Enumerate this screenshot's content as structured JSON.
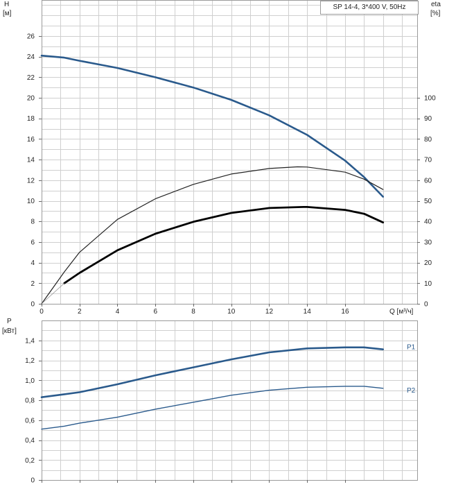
{
  "legend_box": "SP 14-4, 3*400 V, 50Hz",
  "chart_data": [
    {
      "type": "line",
      "panel": "head-efficiency",
      "xlabel": "Q [м³/ч]",
      "ylabel_left": [
        "H",
        "[м]"
      ],
      "ylabel_right": [
        "eta",
        "[%]"
      ],
      "xlim": [
        0,
        19.8
      ],
      "ylim_left": [
        0,
        29.5
      ],
      "ylim_right": [
        0,
        147.5
      ],
      "x_ticks": [
        "0",
        "2",
        "4",
        "6",
        "8",
        "10",
        "12",
        "14",
        "16"
      ],
      "x_tick_values": [
        0,
        2,
        4,
        6,
        8,
        10,
        12,
        14,
        16
      ],
      "y_left_ticks": [
        "0",
        "2",
        "4",
        "6",
        "8",
        "10",
        "12",
        "14",
        "16",
        "18",
        "20",
        "22",
        "24",
        "26"
      ],
      "y_left_tick_values": [
        0,
        2,
        4,
        6,
        8,
        10,
        12,
        14,
        16,
        18,
        20,
        22,
        24,
        26
      ],
      "y_right_ticks": [
        "0",
        "10",
        "20",
        "30",
        "40",
        "50",
        "60",
        "70",
        "80",
        "90",
        "100"
      ],
      "y_right_tick_values": [
        0,
        10,
        20,
        30,
        40,
        50,
        60,
        70,
        80,
        90,
        100
      ],
      "grid": true,
      "series": [
        {
          "axis": "left",
          "color": "#2a5a8c",
          "x": [
            0,
            1.2,
            2,
            4,
            6,
            8,
            10,
            12,
            14,
            16,
            17,
            18
          ],
          "y": [
            24.1,
            23.9,
            23.6,
            22.9,
            22.0,
            21.0,
            19.8,
            18.3,
            16.4,
            13.9,
            12.3,
            10.4
          ]
        },
        {
          "axis": "right",
          "color": "#222222",
          "x": [
            0,
            1.2,
            2,
            4,
            6,
            8,
            10,
            12,
            13.5,
            14,
            16,
            17,
            18
          ],
          "y": [
            0,
            15.5,
            25,
            41,
            51,
            58,
            63,
            65.7,
            66.5,
            66.4,
            63.9,
            60.5,
            55.5
          ]
        },
        {
          "axis": "right",
          "color": "#000000",
          "x": [
            1.2,
            2,
            4,
            6,
            8,
            10,
            12,
            13.8,
            14,
            16,
            17,
            18
          ],
          "y": [
            10,
            15,
            26,
            34,
            39.8,
            44.1,
            46.5,
            47,
            47,
            45.6,
            43.7,
            39.5
          ]
        }
      ]
    },
    {
      "type": "line",
      "panel": "power",
      "ylabel": [
        "P",
        "[кВт]"
      ],
      "xlim": [
        0,
        19.8
      ],
      "ylim": [
        0,
        1.6
      ],
      "y_ticks": [
        "0",
        "0,2",
        "0,4",
        "0,6",
        "0,8",
        "1,0",
        "1,2",
        "1,4"
      ],
      "y_tick_values": [
        0,
        0.2,
        0.4,
        0.6,
        0.8,
        1.0,
        1.2,
        1.4
      ],
      "x_tick_values": [
        0,
        2,
        4,
        6,
        8,
        10,
        12,
        14,
        16
      ],
      "grid": true,
      "series": [
        {
          "name": "P1",
          "color": "#2a5a8c",
          "x": [
            0,
            1.2,
            2,
            4,
            6,
            8,
            10,
            12,
            14,
            16,
            17,
            18
          ],
          "y": [
            0.83,
            0.86,
            0.88,
            0.96,
            1.05,
            1.13,
            1.21,
            1.28,
            1.32,
            1.33,
            1.33,
            1.31
          ]
        },
        {
          "name": "P2",
          "color": "#2a5a8c",
          "x": [
            0,
            1.2,
            2,
            4,
            6,
            8,
            10,
            12,
            14,
            16,
            17,
            18
          ],
          "y": [
            0.51,
            0.54,
            0.57,
            0.63,
            0.71,
            0.78,
            0.85,
            0.9,
            0.93,
            0.94,
            0.94,
            0.92
          ]
        }
      ]
    }
  ]
}
